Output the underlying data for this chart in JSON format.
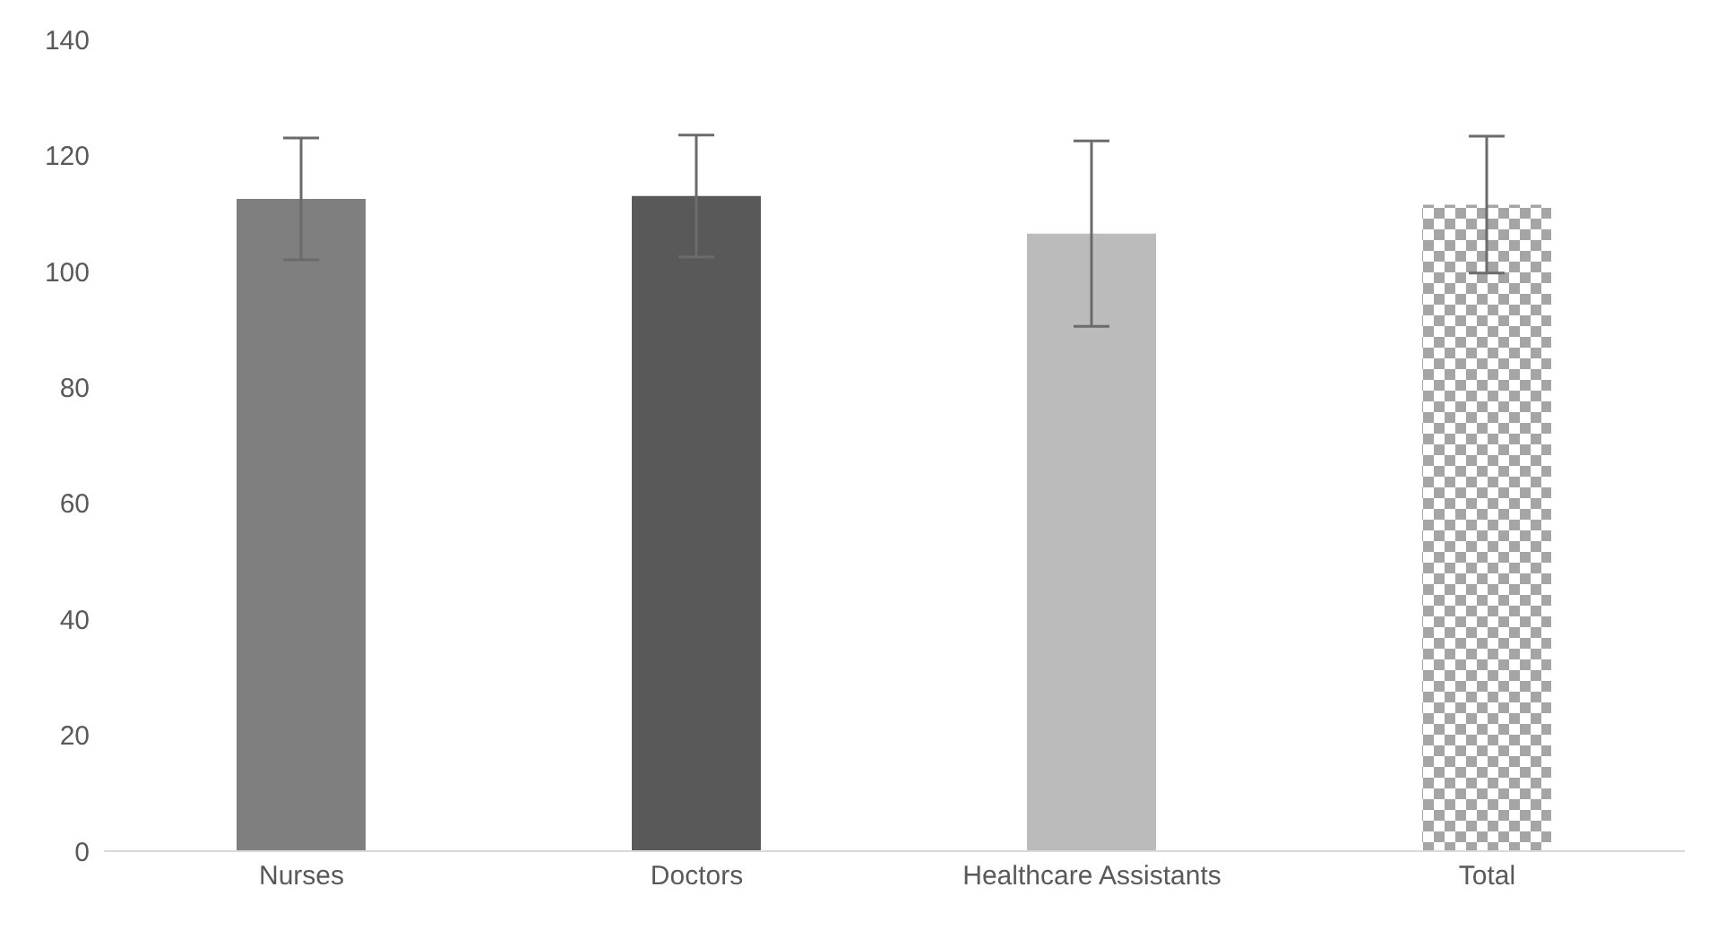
{
  "chart_data": {
    "type": "bar",
    "categories": [
      "Nurses",
      "Doctors",
      "Healthcare Assistants",
      "Total"
    ],
    "values": [
      112.5,
      113,
      106.5,
      111.5
    ],
    "errors": [
      10.5,
      10.5,
      16,
      11.8
    ],
    "colors": [
      "#7f7f7f",
      "#595959",
      "#bbbbbb",
      "#a5a5a5"
    ],
    "ylim": [
      0,
      140
    ],
    "yticks": [
      0,
      20,
      40,
      60,
      80,
      100,
      120,
      140
    ],
    "grid": false
  }
}
